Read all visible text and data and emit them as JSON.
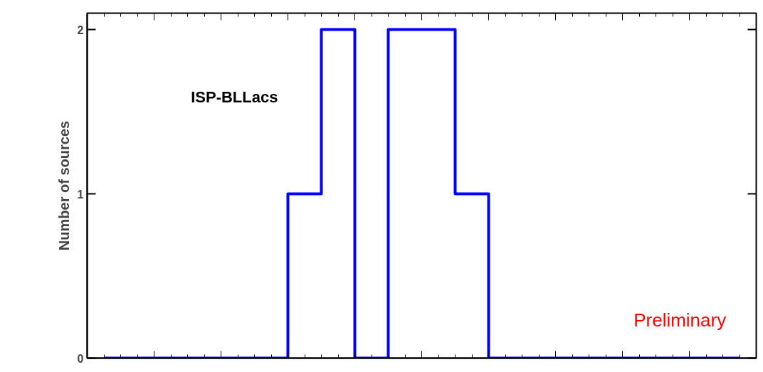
{
  "chart_data": {
    "type": "step",
    "ylabel": "Number of sources",
    "categories": [
      null,
      null,
      null,
      null,
      null,
      null,
      null,
      null,
      null,
      null,
      null,
      null,
      null,
      null,
      null,
      null,
      null,
      null,
      null,
      null
    ],
    "series": [
      {
        "color": "#0000ff",
        "values": [
          0,
          0,
          0,
          0,
          0,
          0,
          1,
          2,
          0,
          2,
          2,
          1,
          0,
          0,
          0,
          0,
          0,
          0,
          0,
          0
        ]
      }
    ],
    "ylim": [
      0,
      2.1
    ],
    "yticks": [
      0,
      1,
      2
    ],
    "tick_labels": "y",
    "grid": false,
    "line_style": "solid",
    "marker": "none",
    "annotations": [
      "ISP-BLLacs",
      "Preliminary"
    ]
  }
}
